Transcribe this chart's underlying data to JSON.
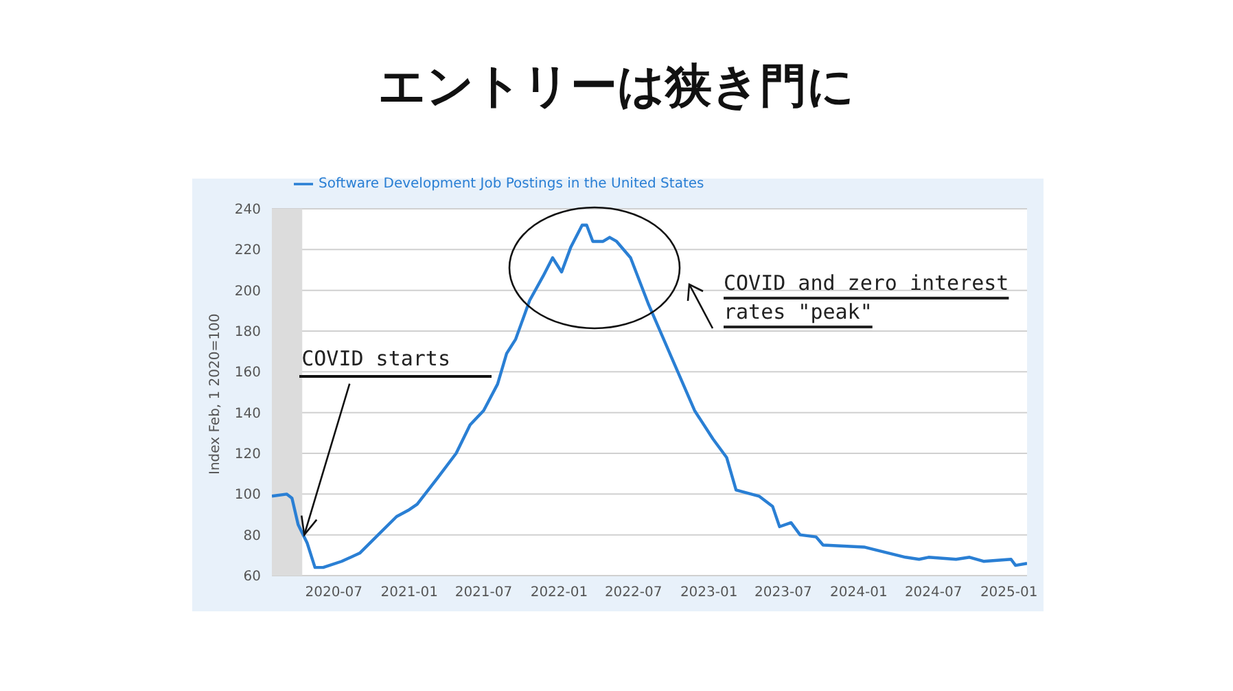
{
  "chart_data": {
    "type": "line",
    "title": "エントリーは狭き門に",
    "ylabel": "Index Feb, 1 2020=100",
    "x": [
      "2020-02-01",
      "2020-03-08",
      "2020-03-21",
      "2020-04-05",
      "2020-04-27",
      "2020-05-16",
      "2020-06-05",
      "2020-07-20",
      "2020-09-02",
      "2020-10-17",
      "2020-12-01",
      "2020-12-29",
      "2021-01-20",
      "2021-03-11",
      "2021-04-25",
      "2021-05-29",
      "2021-07-01",
      "2021-08-04",
      "2021-08-26",
      "2021-09-17",
      "2021-10-21",
      "2021-11-23",
      "2021-12-16",
      "2022-01-07",
      "2022-01-29",
      "2022-02-26",
      "2022-03-09",
      "2022-03-24",
      "2022-04-18",
      "2022-05-04",
      "2022-05-21",
      "2022-06-24",
      "2022-08-07",
      "2022-10-02",
      "2022-11-27",
      "2023-01-11",
      "2023-02-13",
      "2023-03-08",
      "2023-05-03",
      "2023-06-05",
      "2023-06-22",
      "2023-07-20",
      "2023-08-11",
      "2023-09-19",
      "2023-10-06",
      "2024-01-14",
      "2024-04-24",
      "2024-05-27",
      "2024-06-19",
      "2024-08-25",
      "2024-09-27",
      "2024-10-31",
      "2025-01-06",
      "2025-01-17",
      "2025-02-14"
    ],
    "series": [
      {
        "name": "Software Development Job Postings in the United States",
        "color": "#2a7fd4",
        "values": [
          99,
          100,
          98,
          85,
          76,
          64,
          64,
          67,
          71,
          80,
          89,
          92,
          95,
          108,
          120,
          134,
          141,
          154,
          169,
          176,
          195,
          207,
          216,
          209,
          221,
          232,
          232,
          224,
          224,
          226,
          224,
          216,
          193,
          167,
          141,
          127,
          118,
          102,
          99,
          94,
          84,
          86,
          80,
          79,
          75,
          74,
          69,
          68,
          69,
          68,
          69,
          67,
          68,
          65,
          66
        ]
      }
    ],
    "xlim": [
      "2020-02-01",
      "2025-02-14"
    ],
    "xticks": [
      {
        "value": "2020-07",
        "label": "2020-07"
      },
      {
        "value": "2021-01",
        "label": "2021-01"
      },
      {
        "value": "2021-07",
        "label": "2021-07"
      },
      {
        "value": "2022-01",
        "label": "2022-01"
      },
      {
        "value": "2022-07",
        "label": "2022-07"
      },
      {
        "value": "2023-01",
        "label": "2023-01"
      },
      {
        "value": "2023-07",
        "label": "2023-07"
      },
      {
        "value": "2024-01",
        "label": "2024-01"
      },
      {
        "value": "2024-07",
        "label": "2024-07"
      },
      {
        "value": "2025-01",
        "label": "2025-01"
      }
    ],
    "ylim": [
      60,
      240
    ],
    "yticks": [
      60,
      80,
      100,
      120,
      140,
      160,
      180,
      200,
      220,
      240
    ],
    "bands": [
      {
        "axis": "x",
        "from": "2020-02-01",
        "to": "2020-04-15",
        "color": "#dcdcdc"
      }
    ],
    "annotations": [
      {
        "text": "COVID starts",
        "x": "2020-04-20",
        "y": 80
      },
      "COVID and zero interest rates \"peak\""
    ],
    "grid": "y",
    "legend": "top left",
    "marker": "none",
    "line_style": "solid"
  }
}
